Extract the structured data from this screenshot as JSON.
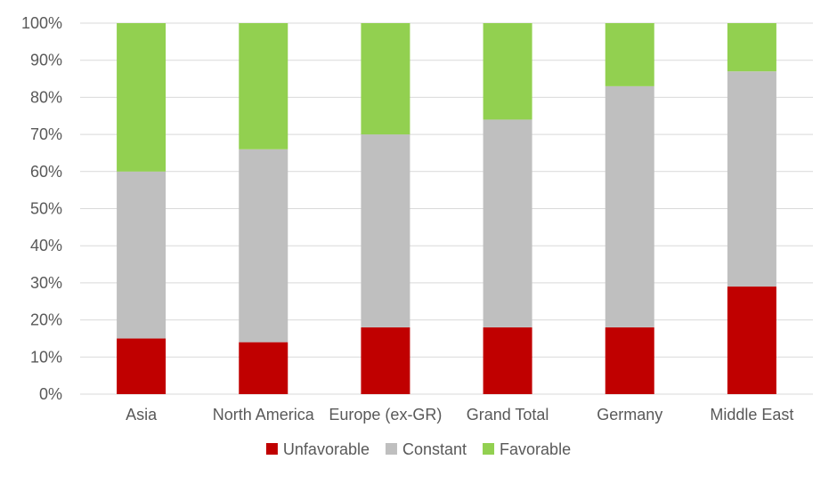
{
  "chart_data": {
    "type": "bar",
    "stacked": true,
    "categories": [
      "Asia",
      "North America",
      "Europe (ex-GR)",
      "Grand Total",
      "Germany",
      "Middle East"
    ],
    "series": [
      {
        "name": "Unfavorable",
        "color": "#c00000",
        "values": [
          15,
          14,
          18,
          18,
          18,
          29
        ]
      },
      {
        "name": "Constant",
        "color": "#bfbfbf",
        "values": [
          45,
          52,
          52,
          56,
          65,
          58
        ]
      },
      {
        "name": "Favorable",
        "color": "#92d050",
        "values": [
          40,
          34,
          30,
          26,
          17,
          13
        ]
      }
    ],
    "ylim": [
      0,
      100
    ],
    "yticks": [
      "0%",
      "10%",
      "20%",
      "30%",
      "40%",
      "50%",
      "60%",
      "70%",
      "80%",
      "90%",
      "100%"
    ],
    "grid": true,
    "legend_position": "bottom"
  }
}
